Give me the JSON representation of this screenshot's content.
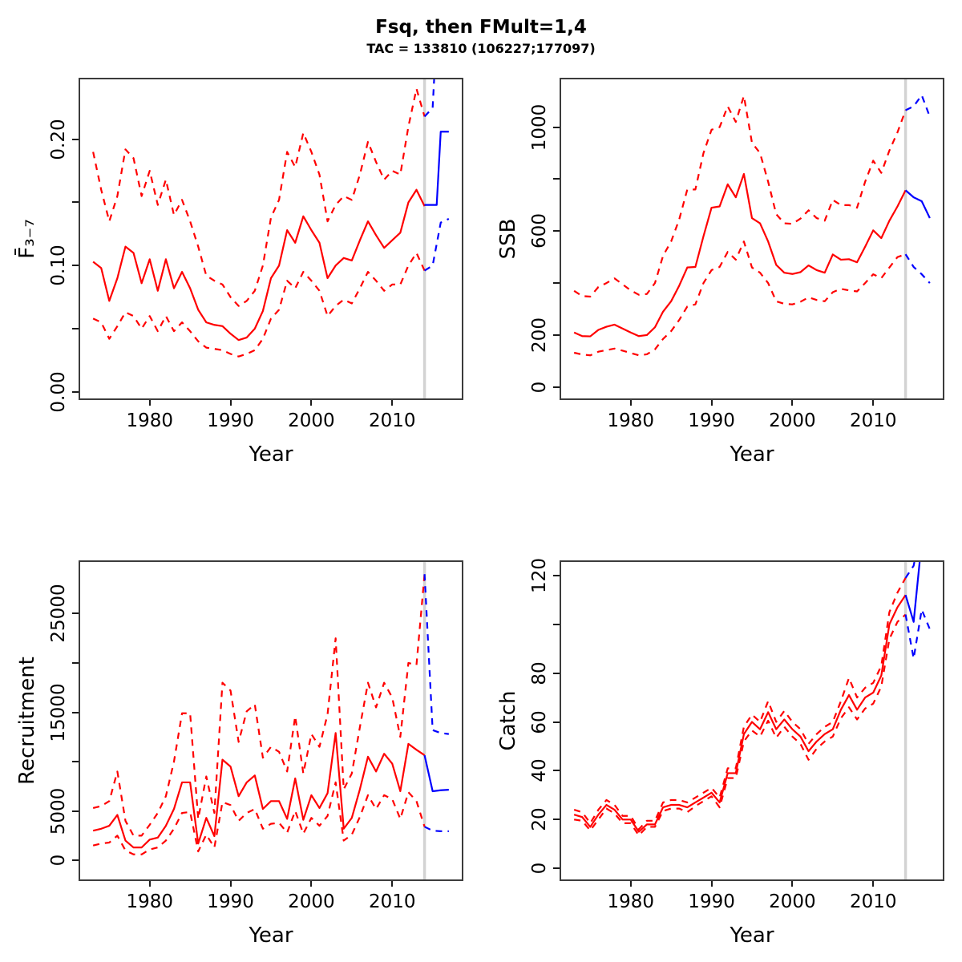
{
  "title": "Fsq, then FMult=1,4",
  "subtitle": "TAC = 133810 (106227;177097)",
  "projection_start_year": 2014,
  "colors": {
    "historic": "#FF0000",
    "projection": "#0000FF",
    "divider": "#D3D3D3",
    "frame": "#3C3C3C",
    "text": "#000000"
  },
  "chart_data": [
    {
      "id": "f",
      "type": "line",
      "ylabel": "F̄₃₋₇",
      "xlabel": "Year",
      "xlim": [
        1971.2,
        2018.8
      ],
      "ylim": [
        -0.0065,
        0.2487
      ],
      "grid": false,
      "xticks": {
        "values": [
          1980,
          1990,
          2000,
          2010
        ],
        "labels": [
          "1980",
          "1990",
          "2000",
          "2010"
        ]
      },
      "yticks": {
        "values": [
          0,
          0.05,
          0.1,
          0.15,
          0.2
        ],
        "labels": [
          "0.00",
          "",
          "0.10",
          "",
          "0.20"
        ]
      },
      "series": [
        {
          "name": "upper-ci-historic",
          "role": "historic",
          "line": "dashed",
          "x_start": 1973,
          "y": [
            0.19,
            0.16,
            0.135,
            0.155,
            0.192,
            0.185,
            0.155,
            0.175,
            0.148,
            0.168,
            0.14,
            0.152,
            0.135,
            0.115,
            0.092,
            0.088,
            0.085,
            0.075,
            0.068,
            0.072,
            0.08,
            0.1,
            0.138,
            0.152,
            0.19,
            0.178,
            0.205,
            0.19,
            0.172,
            0.135,
            0.148,
            0.155,
            0.152,
            0.172,
            0.198,
            0.182,
            0.168,
            0.175,
            0.172,
            0.21,
            0.24,
            0.218
          ]
        },
        {
          "name": "lower-ci-historic",
          "role": "historic",
          "line": "dashed",
          "x_start": 1973,
          "y": [
            0.058,
            0.055,
            0.042,
            0.052,
            0.063,
            0.06,
            0.05,
            0.06,
            0.048,
            0.06,
            0.048,
            0.055,
            0.048,
            0.04,
            0.035,
            0.034,
            0.033,
            0.03,
            0.028,
            0.03,
            0.033,
            0.042,
            0.058,
            0.065,
            0.088,
            0.082,
            0.095,
            0.088,
            0.08,
            0.06,
            0.068,
            0.073,
            0.07,
            0.082,
            0.095,
            0.088,
            0.08,
            0.085,
            0.085,
            0.1,
            0.11,
            0.096
          ]
        },
        {
          "name": "median-historic",
          "role": "historic",
          "line": "solid",
          "x_start": 1973,
          "y": [
            0.103,
            0.098,
            0.072,
            0.09,
            0.115,
            0.11,
            0.086,
            0.105,
            0.08,
            0.105,
            0.082,
            0.095,
            0.082,
            0.065,
            0.055,
            0.053,
            0.052,
            0.046,
            0.041,
            0.043,
            0.05,
            0.064,
            0.09,
            0.1,
            0.128,
            0.118,
            0.139,
            0.128,
            0.118,
            0.09,
            0.1,
            0.106,
            0.104,
            0.12,
            0.135,
            0.124,
            0.114,
            0.12,
            0.126,
            0.15,
            0.16,
            0.147
          ]
        },
        {
          "name": "upper-ci-projection",
          "role": "projection",
          "line": "dashed",
          "x": [
            2014,
            2015,
            2015.9
          ],
          "y": [
            0.218,
            0.225,
            0.335
          ]
        },
        {
          "name": "lower-ci-projection",
          "role": "projection",
          "line": "dashed",
          "x": [
            2014,
            2015,
            2016,
            2017
          ],
          "y": [
            0.096,
            0.1,
            0.134,
            0.137
          ]
        },
        {
          "name": "median-projection",
          "role": "projection",
          "line": "solid",
          "x": [
            2014,
            2015.5,
            2016,
            2017
          ],
          "y": [
            0.148,
            0.148,
            0.206,
            0.206
          ]
        }
      ]
    },
    {
      "id": "ssb",
      "type": "line",
      "ylabel": "SSB",
      "xlabel": "Year",
      "xlim": [
        1971.2,
        2018.8
      ],
      "ylim": [
        -50,
        1190
      ],
      "grid": false,
      "xticks": {
        "values": [
          1980,
          1990,
          2000,
          2010
        ],
        "labels": [
          "1980",
          "1990",
          "2000",
          "2010"
        ]
      },
      "yticks": {
        "values": [
          0,
          200,
          400,
          600,
          800,
          1000
        ],
        "labels": [
          "0",
          "200",
          "",
          "600",
          "",
          "1000"
        ]
      },
      "series": [
        {
          "name": "upper-ci-historic",
          "role": "historic",
          "line": "dashed",
          "x_start": 1973,
          "y": [
            370,
            350,
            348,
            385,
            400,
            418,
            395,
            372,
            355,
            358,
            400,
            505,
            560,
            645,
            760,
            760,
            900,
            990,
            1000,
            1080,
            1020,
            1120,
            940,
            900,
            790,
            665,
            630,
            628,
            648,
            680,
            650,
            640,
            720,
            700,
            700,
            690,
            790,
            871,
            824,
            910,
            980,
            1065
          ]
        },
        {
          "name": "lower-ci-historic",
          "role": "historic",
          "line": "dashed",
          "x_start": 1973,
          "y": [
            132,
            125,
            122,
            136,
            142,
            148,
            140,
            131,
            122,
            126,
            145,
            185,
            215,
            258,
            310,
            318,
            400,
            450,
            462,
            520,
            490,
            560,
            460,
            440,
            400,
            330,
            320,
            318,
            328,
            345,
            335,
            330,
            365,
            378,
            372,
            368,
            400,
            434,
            419,
            460,
            500,
            511
          ]
        },
        {
          "name": "median-historic",
          "role": "historic",
          "line": "solid",
          "x_start": 1973,
          "y": [
            210,
            196,
            195,
            220,
            232,
            240,
            225,
            210,
            196,
            200,
            230,
            290,
            330,
            390,
            460,
            462,
            580,
            690,
            695,
            780,
            730,
            820,
            650,
            630,
            560,
            470,
            440,
            435,
            442,
            468,
            450,
            440,
            510,
            490,
            492,
            480,
            540,
            603,
            573,
            640,
            695,
            757
          ]
        },
        {
          "name": "upper-ci-projection",
          "role": "projection",
          "line": "dashed",
          "x": [
            2014,
            2015,
            2016,
            2017
          ],
          "y": [
            1065,
            1080,
            1123,
            1040
          ]
        },
        {
          "name": "lower-ci-projection",
          "role": "projection",
          "line": "dashed",
          "x": [
            2014,
            2015,
            2016,
            2017
          ],
          "y": [
            511,
            462,
            434,
            400
          ]
        },
        {
          "name": "median-projection",
          "role": "projection",
          "line": "solid",
          "x": [
            2014,
            2015,
            2016,
            2017
          ],
          "y": [
            757,
            730,
            715,
            650
          ]
        }
      ]
    },
    {
      "id": "recruitment",
      "type": "line",
      "ylabel": "Recruitment",
      "xlabel": "Year",
      "xlim": [
        1971.2,
        2018.8
      ],
      "ylim": [
        -2100,
        30400
      ],
      "grid": false,
      "xticks": {
        "values": [
          1980,
          1990,
          2000,
          2010
        ],
        "labels": [
          "1980",
          "1990",
          "2000",
          "2010"
        ]
      },
      "yticks": {
        "values": [
          0,
          5000,
          10000,
          15000,
          20000,
          25000
        ],
        "labels": [
          "0",
          "5000",
          "",
          "15000",
          "",
          "25000"
        ]
      },
      "series": [
        {
          "name": "upper-ci-historic",
          "role": "historic",
          "line": "dashed",
          "x_start": 1973,
          "y": [
            5300,
            5500,
            6000,
            9000,
            4000,
            2500,
            2500,
            3600,
            4800,
            6500,
            10000,
            14900,
            14900,
            4200,
            8500,
            4800,
            18000,
            17200,
            12000,
            15100,
            15800,
            10400,
            11500,
            11000,
            9000,
            14600,
            8800,
            12800,
            11500,
            14800,
            22500,
            7200,
            8800,
            13500,
            18000,
            15500,
            18000,
            16500,
            12500,
            20000,
            19800,
            29000
          ]
        },
        {
          "name": "lower-ci-historic",
          "role": "historic",
          "line": "dashed",
          "x_start": 1973,
          "y": [
            1500,
            1700,
            1800,
            2500,
            1000,
            600,
            600,
            1100,
            1300,
            2000,
            3200,
            4800,
            4900,
            900,
            2600,
            1300,
            5900,
            5600,
            4000,
            4800,
            5200,
            3200,
            3700,
            3800,
            2800,
            5000,
            2700,
            4300,
            3500,
            4500,
            7900,
            2000,
            2600,
            4400,
            6600,
            5200,
            6600,
            6200,
            4200,
            6900,
            6000,
            3400
          ]
        },
        {
          "name": "median-historic",
          "role": "historic",
          "line": "solid",
          "x_start": 1973,
          "y": [
            3000,
            3200,
            3500,
            4600,
            2000,
            1300,
            1300,
            2100,
            2300,
            3500,
            5200,
            7900,
            7900,
            1700,
            4300,
            2450,
            10200,
            9500,
            6500,
            7900,
            8600,
            5200,
            6000,
            6000,
            4200,
            8300,
            4100,
            6600,
            5300,
            6800,
            12900,
            3200,
            4300,
            7200,
            10500,
            9000,
            10800,
            9800,
            7000,
            11800,
            11200,
            10650
          ]
        },
        {
          "name": "upper-ci-projection",
          "role": "projection",
          "line": "dashed",
          "x": [
            2014,
            2015,
            2016,
            2017
          ],
          "y": [
            29000,
            13200,
            12900,
            12800
          ]
        },
        {
          "name": "lower-ci-projection",
          "role": "projection",
          "line": "dashed",
          "x": [
            2014,
            2015,
            2016,
            2017
          ],
          "y": [
            3400,
            3000,
            2950,
            2950
          ]
        },
        {
          "name": "median-projection",
          "role": "projection",
          "line": "solid",
          "x": [
            2014,
            2015,
            2016,
            2017
          ],
          "y": [
            10650,
            7000,
            7100,
            7150
          ]
        }
      ]
    },
    {
      "id": "catch",
      "type": "line",
      "ylabel": "Catch",
      "xlabel": "Year",
      "xlim": [
        1971.2,
        2018.8
      ],
      "ylim": [
        -5.2,
        126.2
      ],
      "grid": false,
      "xticks": {
        "values": [
          1980,
          1990,
          2000,
          2010
        ],
        "labels": [
          "1980",
          "1990",
          "2000",
          "2010"
        ]
      },
      "yticks": {
        "values": [
          0,
          20,
          40,
          60,
          80,
          100,
          120
        ],
        "labels": [
          "0",
          "20",
          "40",
          "60",
          "80",
          "",
          "120"
        ]
      },
      "series": [
        {
          "name": "upper-ci-historic",
          "role": "historic",
          "line": "dashed",
          "x_start": 1973,
          "y": [
            24,
            23,
            18.5,
            24,
            28,
            26,
            21.5,
            21.5,
            16,
            19.5,
            19.5,
            27,
            28,
            28,
            27,
            29,
            31,
            33,
            29,
            41,
            41,
            58,
            63,
            60,
            68.5,
            60,
            64.5,
            60,
            57,
            51,
            55,
            58,
            60,
            68.5,
            78,
            70,
            74,
            76,
            83,
            105,
            113,
            119
          ]
        },
        {
          "name": "lower-ci-historic",
          "role": "historic",
          "line": "dashed",
          "x_start": 1973,
          "y": [
            20,
            19.5,
            15.5,
            20,
            24.5,
            22.5,
            18.5,
            18.5,
            13.5,
            17,
            17,
            23.5,
            24.5,
            24.5,
            23,
            25.5,
            27.5,
            29.5,
            25,
            37,
            37,
            52,
            56.5,
            54,
            60.5,
            53.5,
            58,
            54,
            51,
            44.5,
            49,
            52,
            54,
            61.5,
            66,
            61,
            65.5,
            67.5,
            74.5,
            94,
            101,
            104
          ]
        },
        {
          "name": "median-historic",
          "role": "historic",
          "line": "solid",
          "x_start": 1973,
          "y": [
            22,
            21,
            17,
            22,
            26,
            24,
            20,
            20,
            15,
            18,
            18,
            25,
            26,
            26,
            25,
            27,
            29,
            31,
            27,
            39,
            39,
            55,
            60,
            57,
            64,
            57,
            61,
            57,
            54,
            48,
            52,
            55,
            57,
            65,
            71,
            65,
            70,
            72,
            79,
            100,
            107,
            112
          ]
        },
        {
          "name": "upper-ci-projection",
          "role": "projection",
          "line": "dashed",
          "x": [
            2014,
            2015,
            2015.6
          ],
          "y": [
            119,
            124,
            134
          ]
        },
        {
          "name": "lower-ci-projection",
          "role": "projection",
          "line": "dashed",
          "x": [
            2014,
            2015,
            2016,
            2017
          ],
          "y": [
            104,
            86,
            106,
            98
          ]
        },
        {
          "name": "median-projection",
          "role": "projection",
          "line": "solid",
          "x": [
            2014,
            2015,
            2016,
            2017
          ],
          "y": [
            112,
            101,
            134,
            134
          ]
        }
      ]
    }
  ]
}
